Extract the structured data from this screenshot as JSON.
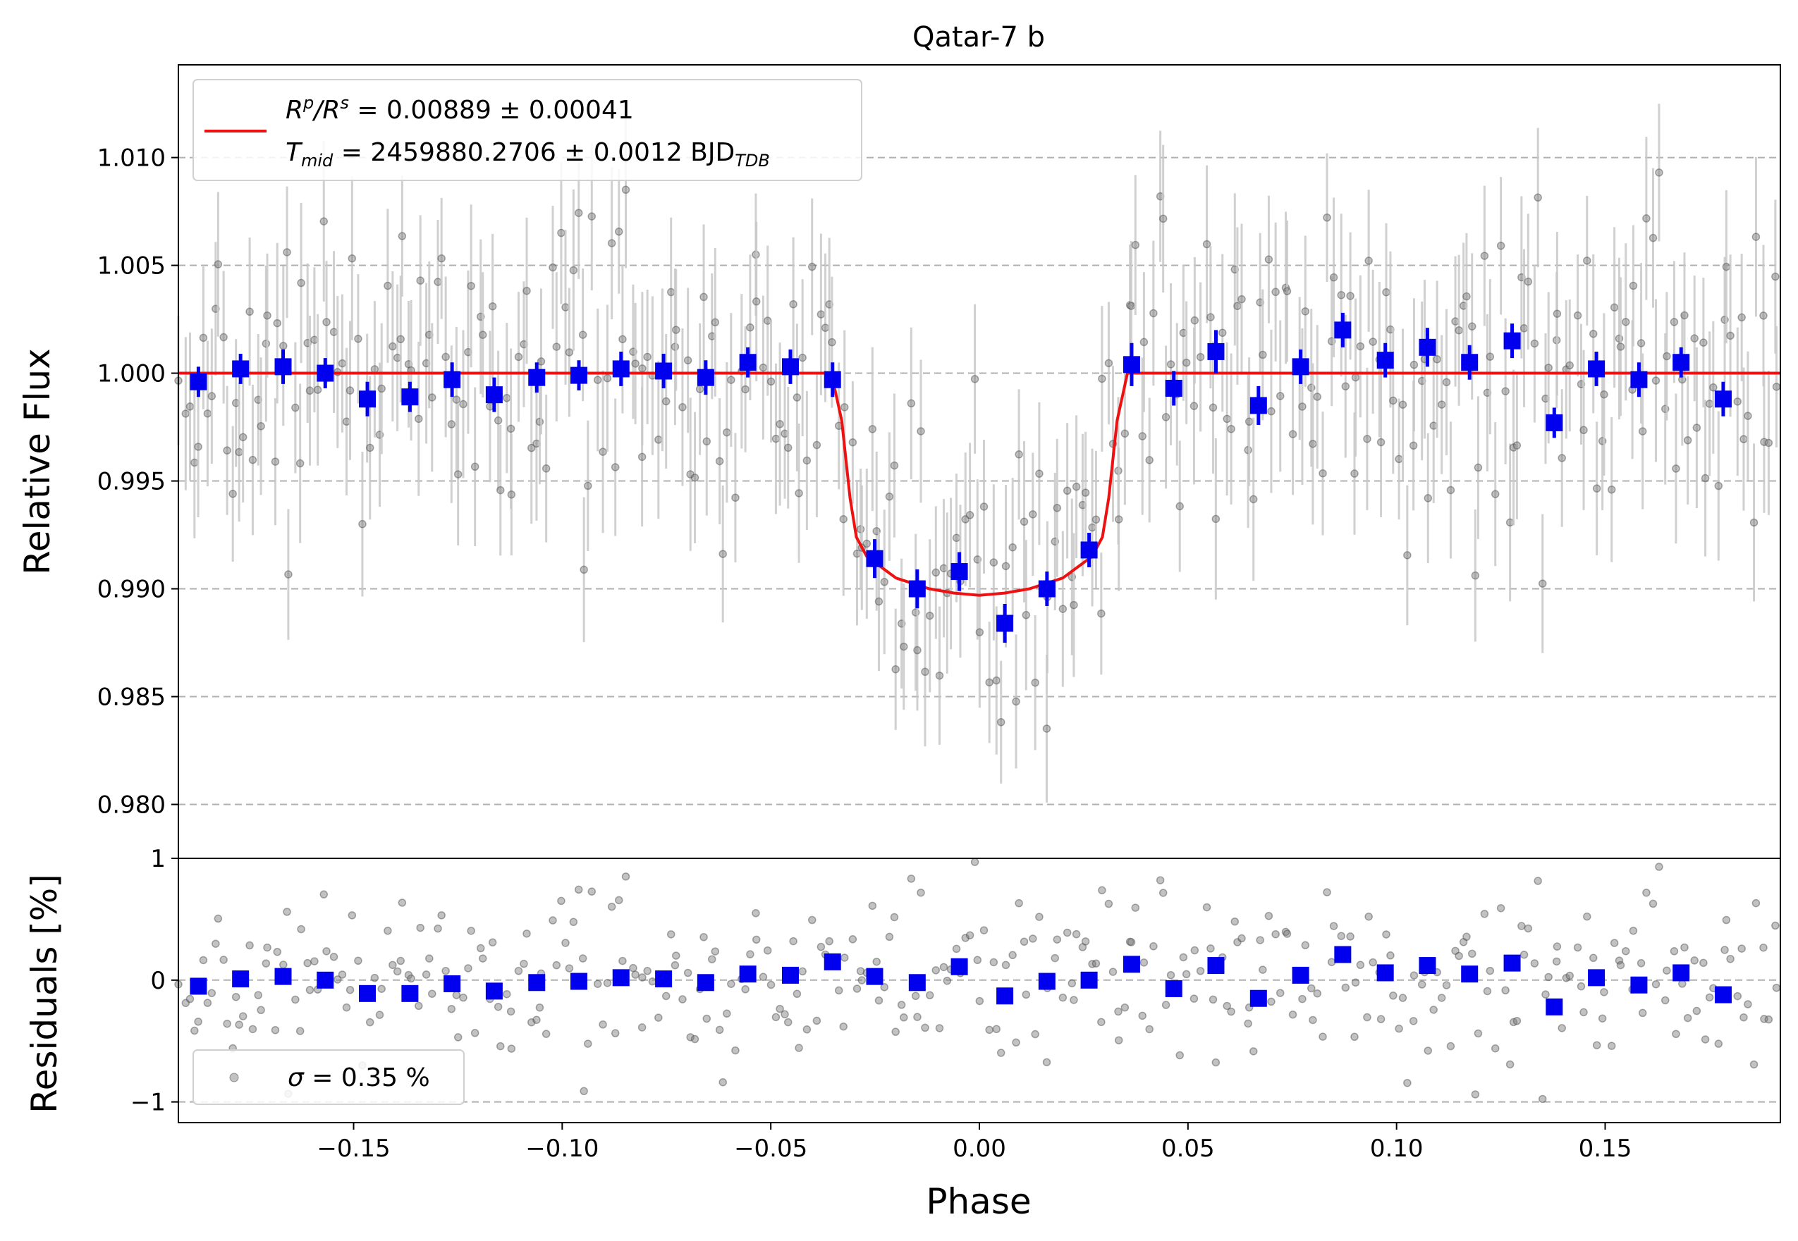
{
  "chart_data": [
    {
      "type": "scatter",
      "title": "Qatar-7 b",
      "xlabel": "",
      "ylabel": "Relative Flux",
      "xlim": [
        -0.192,
        0.192
      ],
      "ylim": [
        0.9775,
        1.0143
      ],
      "yticks": [
        0.98,
        0.985,
        0.99,
        0.995,
        1.0,
        1.005,
        1.01
      ],
      "ytick_labels": [
        "0.980",
        "0.985",
        "0.990",
        "0.995",
        "1.000",
        "1.005",
        "1.010"
      ],
      "grid": "horizontal dashed",
      "legend_position": "top-left",
      "legend": {
        "line1_prefix": "R",
        "line1_sub1": "p",
        "line1_mid": "/R",
        "line1_sub2": "s",
        "line1_value": " = 0.00889 ± 0.00041",
        "line2_prefix": "T",
        "line2_sub": "mid",
        "line2_value": " = 2459880.2706 ± 0.0012 BJD",
        "line2_unit_sub": "TDB"
      },
      "series": [
        {
          "name": "model",
          "kind": "line",
          "color": "#ee1111",
          "x": [
            -0.192,
            -0.0355,
            -0.033,
            -0.031,
            -0.0295,
            -0.027,
            -0.02,
            -0.012,
            -0.006,
            0.0,
            0.006,
            0.012,
            0.02,
            0.027,
            0.0295,
            0.031,
            0.033,
            0.0355,
            0.192
          ],
          "y": [
            1.0,
            1.0,
            0.9978,
            0.9942,
            0.9924,
            0.9915,
            0.9905,
            0.99,
            0.9898,
            0.9897,
            0.9898,
            0.99,
            0.9905,
            0.9915,
            0.9924,
            0.9942,
            0.9978,
            1.0,
            1.0
          ]
        },
        {
          "name": "binned",
          "kind": "points",
          "color": "#0000ee",
          "x": [
            -0.1872,
            -0.1771,
            -0.1669,
            -0.1568,
            -0.1467,
            -0.1365,
            -0.1264,
            -0.1163,
            -0.1061,
            -0.096,
            -0.0859,
            -0.0757,
            -0.0656,
            -0.0555,
            -0.0453,
            -0.0352,
            -0.0251,
            -0.0149,
            -0.0048,
            0.0061,
            0.0162,
            0.0263,
            0.0365,
            0.0466,
            0.0567,
            0.0669,
            0.077,
            0.0871,
            0.0973,
            0.1074,
            0.1175,
            0.1277,
            0.1378,
            0.1479,
            0.1581,
            0.1682,
            0.1783
          ],
          "y": [
            0.9996,
            1.0002,
            1.0003,
            1.0,
            0.9988,
            0.9989,
            0.9997,
            0.999,
            0.9998,
            0.9999,
            1.0002,
            1.0001,
            0.9998,
            1.0005,
            1.0003,
            0.9997,
            0.9914,
            0.99,
            0.9908,
            0.9884,
            0.99,
            0.9918,
            1.0004,
            0.9993,
            1.001,
            0.9985,
            1.0003,
            1.002,
            1.0006,
            1.0012,
            1.0005,
            1.0015,
            0.9977,
            1.0002,
            0.9997,
            1.0005,
            0.9988
          ],
          "err": [
            0.0007,
            0.0007,
            0.0008,
            0.0007,
            0.0008,
            0.0007,
            0.0008,
            0.0008,
            0.0007,
            0.0007,
            0.0008,
            0.0008,
            0.0008,
            0.0007,
            0.0008,
            0.0008,
            0.0009,
            0.0009,
            0.0009,
            0.0009,
            0.0008,
            0.0008,
            0.001,
            0.0008,
            0.001,
            0.0009,
            0.0008,
            0.0008,
            0.0008,
            0.0009,
            0.0008,
            0.0008,
            0.0007,
            0.0008,
            0.0008,
            0.0007,
            0.0008
          ]
        }
      ]
    },
    {
      "type": "scatter",
      "title": "",
      "xlabel": "Phase",
      "ylabel": "Residuals [%]",
      "xlim": [
        -0.192,
        0.192
      ],
      "ylim": [
        -1.17,
        1.0
      ],
      "xticks": [
        -0.15,
        -0.1,
        -0.05,
        0.0,
        0.05,
        0.1,
        0.15
      ],
      "xtick_labels": [
        "−0.15",
        "−0.10",
        "−0.05",
        "0.00",
        "0.05",
        "0.10",
        "0.15"
      ],
      "yticks": [
        -1,
        0,
        1
      ],
      "ytick_labels": [
        "−1",
        "0",
        "1"
      ],
      "grid": "horizontal dashed",
      "legend_position": "bottom-left",
      "legend": {
        "sigma_symbol": "σ",
        "sigma_value": " = 0.35 %"
      },
      "series": [
        {
          "name": "binned residuals",
          "kind": "points",
          "color": "#0000ee",
          "x": [
            -0.1872,
            -0.1771,
            -0.1669,
            -0.1568,
            -0.1467,
            -0.1365,
            -0.1264,
            -0.1163,
            -0.1061,
            -0.096,
            -0.0859,
            -0.0757,
            -0.0656,
            -0.0555,
            -0.0453,
            -0.0352,
            -0.0251,
            -0.0149,
            -0.0048,
            0.0061,
            0.0162,
            0.0263,
            0.0365,
            0.0466,
            0.0567,
            0.0669,
            0.077,
            0.0871,
            0.0973,
            0.1074,
            0.1175,
            0.1277,
            0.1378,
            0.1479,
            0.1581,
            0.1682,
            0.1783
          ],
          "y": [
            -0.05,
            0.01,
            0.03,
            0.0,
            -0.11,
            -0.11,
            -0.03,
            -0.09,
            -0.02,
            -0.01,
            0.02,
            0.01,
            -0.02,
            0.05,
            0.04,
            0.15,
            0.03,
            -0.02,
            0.11,
            -0.13,
            -0.01,
            0.0,
            0.13,
            -0.07,
            0.12,
            -0.15,
            0.04,
            0.21,
            0.06,
            0.12,
            0.05,
            0.14,
            -0.22,
            0.02,
            -0.04,
            0.06,
            -0.12
          ]
        }
      ]
    }
  ],
  "colors": {
    "model": "#ee1111",
    "binned": "#0000ee",
    "raw_points": "#555555",
    "raw_errorbars": "#c8c8c8",
    "grid": "#b0b0b0"
  }
}
